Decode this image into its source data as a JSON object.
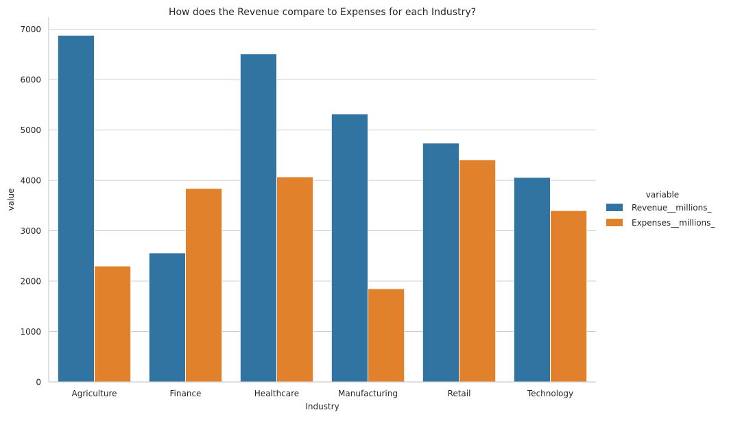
{
  "chart_data": {
    "type": "bar",
    "title": "How does the Revenue compare to Expenses for each Industry?",
    "xlabel": "Industry",
    "ylabel": "value",
    "categories": [
      "Agriculture",
      "Finance",
      "Healthcare",
      "Manufacturing",
      "Retail",
      "Technology"
    ],
    "series": [
      {
        "name": "Revenue__millions_",
        "color": "#3274a1",
        "values": [
          6880,
          2560,
          6510,
          5320,
          4740,
          4060
        ]
      },
      {
        "name": "Expenses__millions_",
        "color": "#e1812c",
        "values": [
          2300,
          3840,
          4070,
          1850,
          4410,
          3400
        ]
      }
    ],
    "yticks": [
      0,
      1000,
      2000,
      3000,
      4000,
      5000,
      6000,
      7000
    ],
    "ylim": [
      0,
      7000
    ],
    "grid": "horizontal",
    "legend": {
      "title": "variable",
      "placement": "right"
    }
  }
}
